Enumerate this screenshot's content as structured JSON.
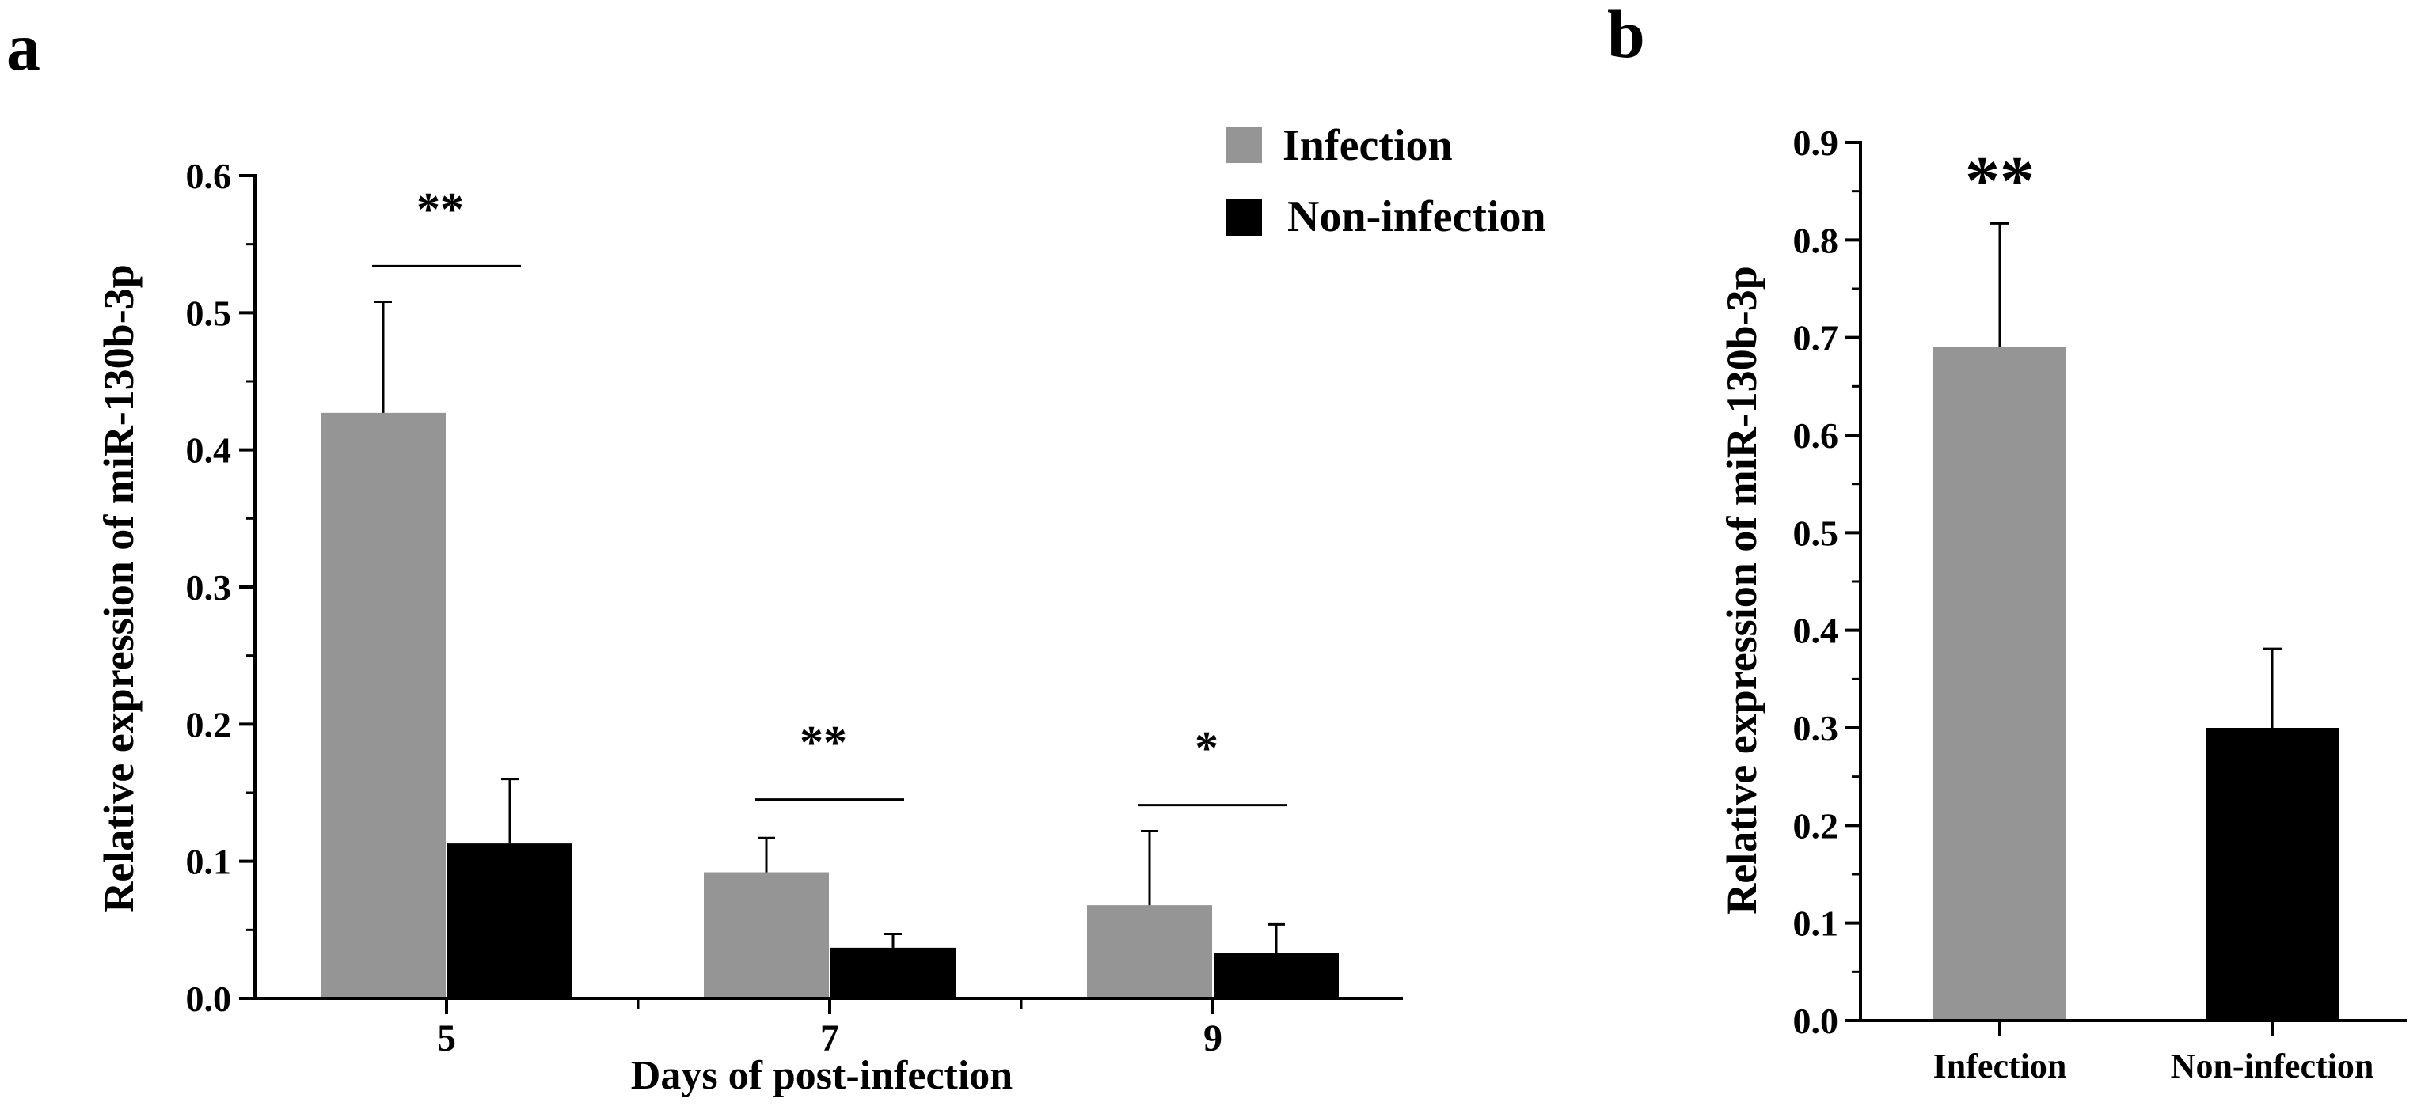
{
  "panels": {
    "a": {
      "label": "a"
    },
    "b": {
      "label": "b"
    }
  },
  "colors": {
    "infection": "#959595",
    "non_infection": "#000000",
    "axis": "#000000"
  },
  "chart_data": [
    {
      "id": "panel-a",
      "type": "bar",
      "title": "",
      "xlabel": "Days of post-infection",
      "ylabel": "Relative expression of miR-130b-3p",
      "categories": [
        "5",
        "7",
        "9"
      ],
      "series": [
        {
          "name": "Infection",
          "color": "#959595",
          "values": [
            0.427,
            0.092,
            0.068
          ],
          "errors": [
            0.081,
            0.025,
            0.054
          ]
        },
        {
          "name": "Non-infection",
          "color": "#000000",
          "values": [
            0.113,
            0.037,
            0.033
          ],
          "errors": [
            0.047,
            0.01,
            0.021
          ]
        }
      ],
      "ylim": [
        0,
        0.6
      ],
      "yticks": [
        "0.0",
        "0.1",
        "0.2",
        "0.3",
        "0.4",
        "0.5",
        "0.6"
      ],
      "significance": [
        {
          "category": "5",
          "label": "**",
          "level": 0.534
        },
        {
          "category": "7",
          "label": "**",
          "level": 0.145
        },
        {
          "category": "9",
          "label": "*",
          "level": 0.141
        }
      ],
      "legend": {
        "position": "top-right",
        "entries": [
          "Infection",
          "Non-infection"
        ]
      },
      "grid": false
    },
    {
      "id": "panel-b",
      "type": "bar",
      "title": "",
      "xlabel": "",
      "ylabel": "Relative expression of miR-130b-3p",
      "categories": [
        "Infection",
        "Non-infection"
      ],
      "series": [
        {
          "name": "Relative expression",
          "colors": [
            "#959595",
            "#000000"
          ],
          "values": [
            0.69,
            0.3
          ],
          "errors": [
            0.127,
            0.081
          ]
        }
      ],
      "ylim": [
        0,
        0.9
      ],
      "yticks": [
        "0.0",
        "0.1",
        "0.2",
        "0.3",
        "0.4",
        "0.5",
        "0.6",
        "0.7",
        "0.8",
        "0.9"
      ],
      "significance": [
        {
          "category": "Infection",
          "label": "**"
        }
      ],
      "grid": false
    }
  ]
}
